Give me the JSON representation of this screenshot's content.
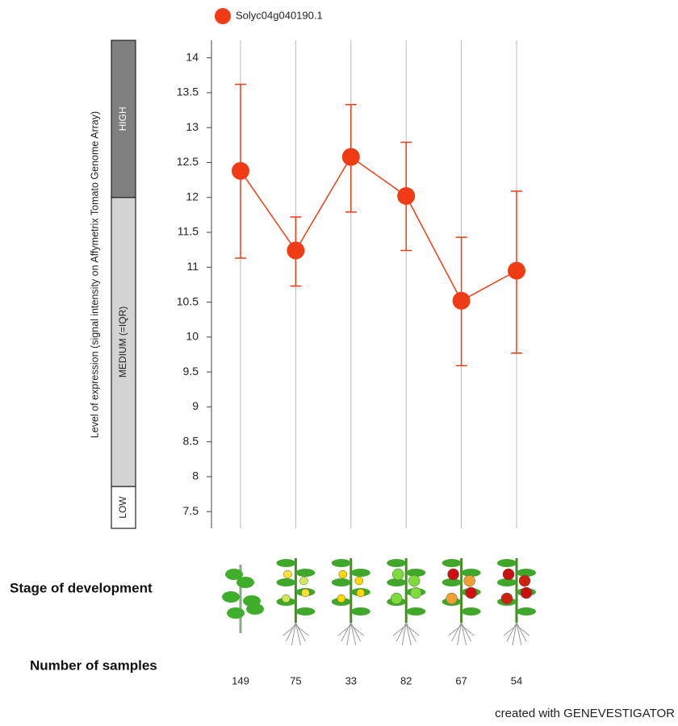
{
  "chart_data": {
    "type": "errorline",
    "y_label": "Level of expression (signal intensity on Affymetrix Tomato Genome Array)",
    "categories": [
      null,
      null,
      null,
      null,
      null,
      null
    ],
    "series": [
      {
        "name": "Solyc04g040190.1",
        "color": "#f03c14",
        "values": [
          12.38,
          11.24,
          12.58,
          12.02,
          10.52,
          10.95
        ],
        "upper": [
          13.62,
          11.72,
          13.33,
          12.79,
          11.43,
          12.09
        ],
        "lower": [
          11.13,
          10.73,
          11.79,
          11.24,
          9.59,
          9.77
        ]
      }
    ],
    "ylim": [
      7.26,
      14.25
    ],
    "yticks": [
      7.5,
      8,
      8.5,
      9,
      9.5,
      10,
      10.5,
      11,
      11.5,
      12,
      12.5,
      13,
      13.5,
      14
    ],
    "grid": "x",
    "bands": [
      {
        "label": "LOW",
        "range": [
          7.26,
          7.86
        ],
        "color": "#ffffff"
      },
      {
        "label": "MEDIUM (=IQR)",
        "range": [
          7.86,
          12.0
        ],
        "color": "#d3d3d3"
      },
      {
        "label": "HIGH",
        "range": [
          12.0,
          14.25
        ],
        "color": "#808080"
      }
    ],
    "stage_label": "Stage of development",
    "samples_label": "Number of samples",
    "sample_counts": [
      149,
      75,
      33,
      82,
      67,
      54
    ]
  },
  "footer": "created with GENEVESTIGATOR"
}
